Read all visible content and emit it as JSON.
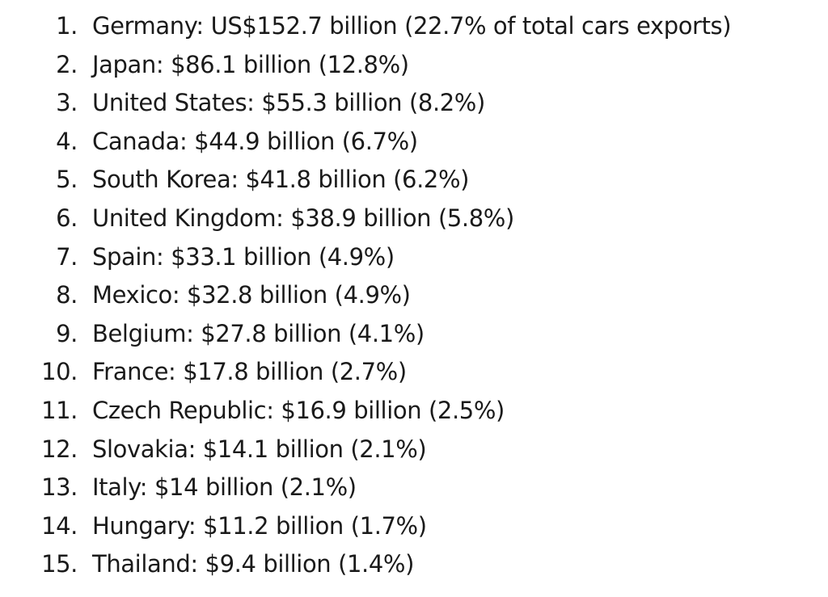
{
  "list": {
    "items": [
      {
        "number": "1.",
        "text": "Germany: US$152.7 billion (22.7% of total cars exports)"
      },
      {
        "number": "2.",
        "text": "Japan: $86.1 billion (12.8%)"
      },
      {
        "number": "3.",
        "text": "United States: $55.3 billion (8.2%)"
      },
      {
        "number": "4.",
        "text": "Canada: $44.9 billion (6.7%)"
      },
      {
        "number": "5.",
        "text": "South Korea: $41.8 billion (6.2%)"
      },
      {
        "number": "6.",
        "text": "United Kingdom: $38.9 billion (5.8%)"
      },
      {
        "number": "7.",
        "text": "Spain: $33.1 billion (4.9%)"
      },
      {
        "number": "8.",
        "text": "Mexico: $32.8 billion (4.9%)"
      },
      {
        "number": "9.",
        "text": "Belgium: $27.8 billion (4.1%)"
      },
      {
        "number": "10.",
        "text": "France: $17.8 billion (2.7%)"
      },
      {
        "number": "11.",
        "text": "Czech Republic: $16.9 billion (2.5%)"
      },
      {
        "number": "12.",
        "text": "Slovakia: $14.1 billion (2.1%)"
      },
      {
        "number": "13.",
        "text": "Italy: $14 billion (2.1%)"
      },
      {
        "number": "14.",
        "text": "Hungary: $11.2 billion (1.7%)"
      },
      {
        "number": "15.",
        "text": "Thailand: $9.4 billion (1.4%)"
      }
    ]
  }
}
